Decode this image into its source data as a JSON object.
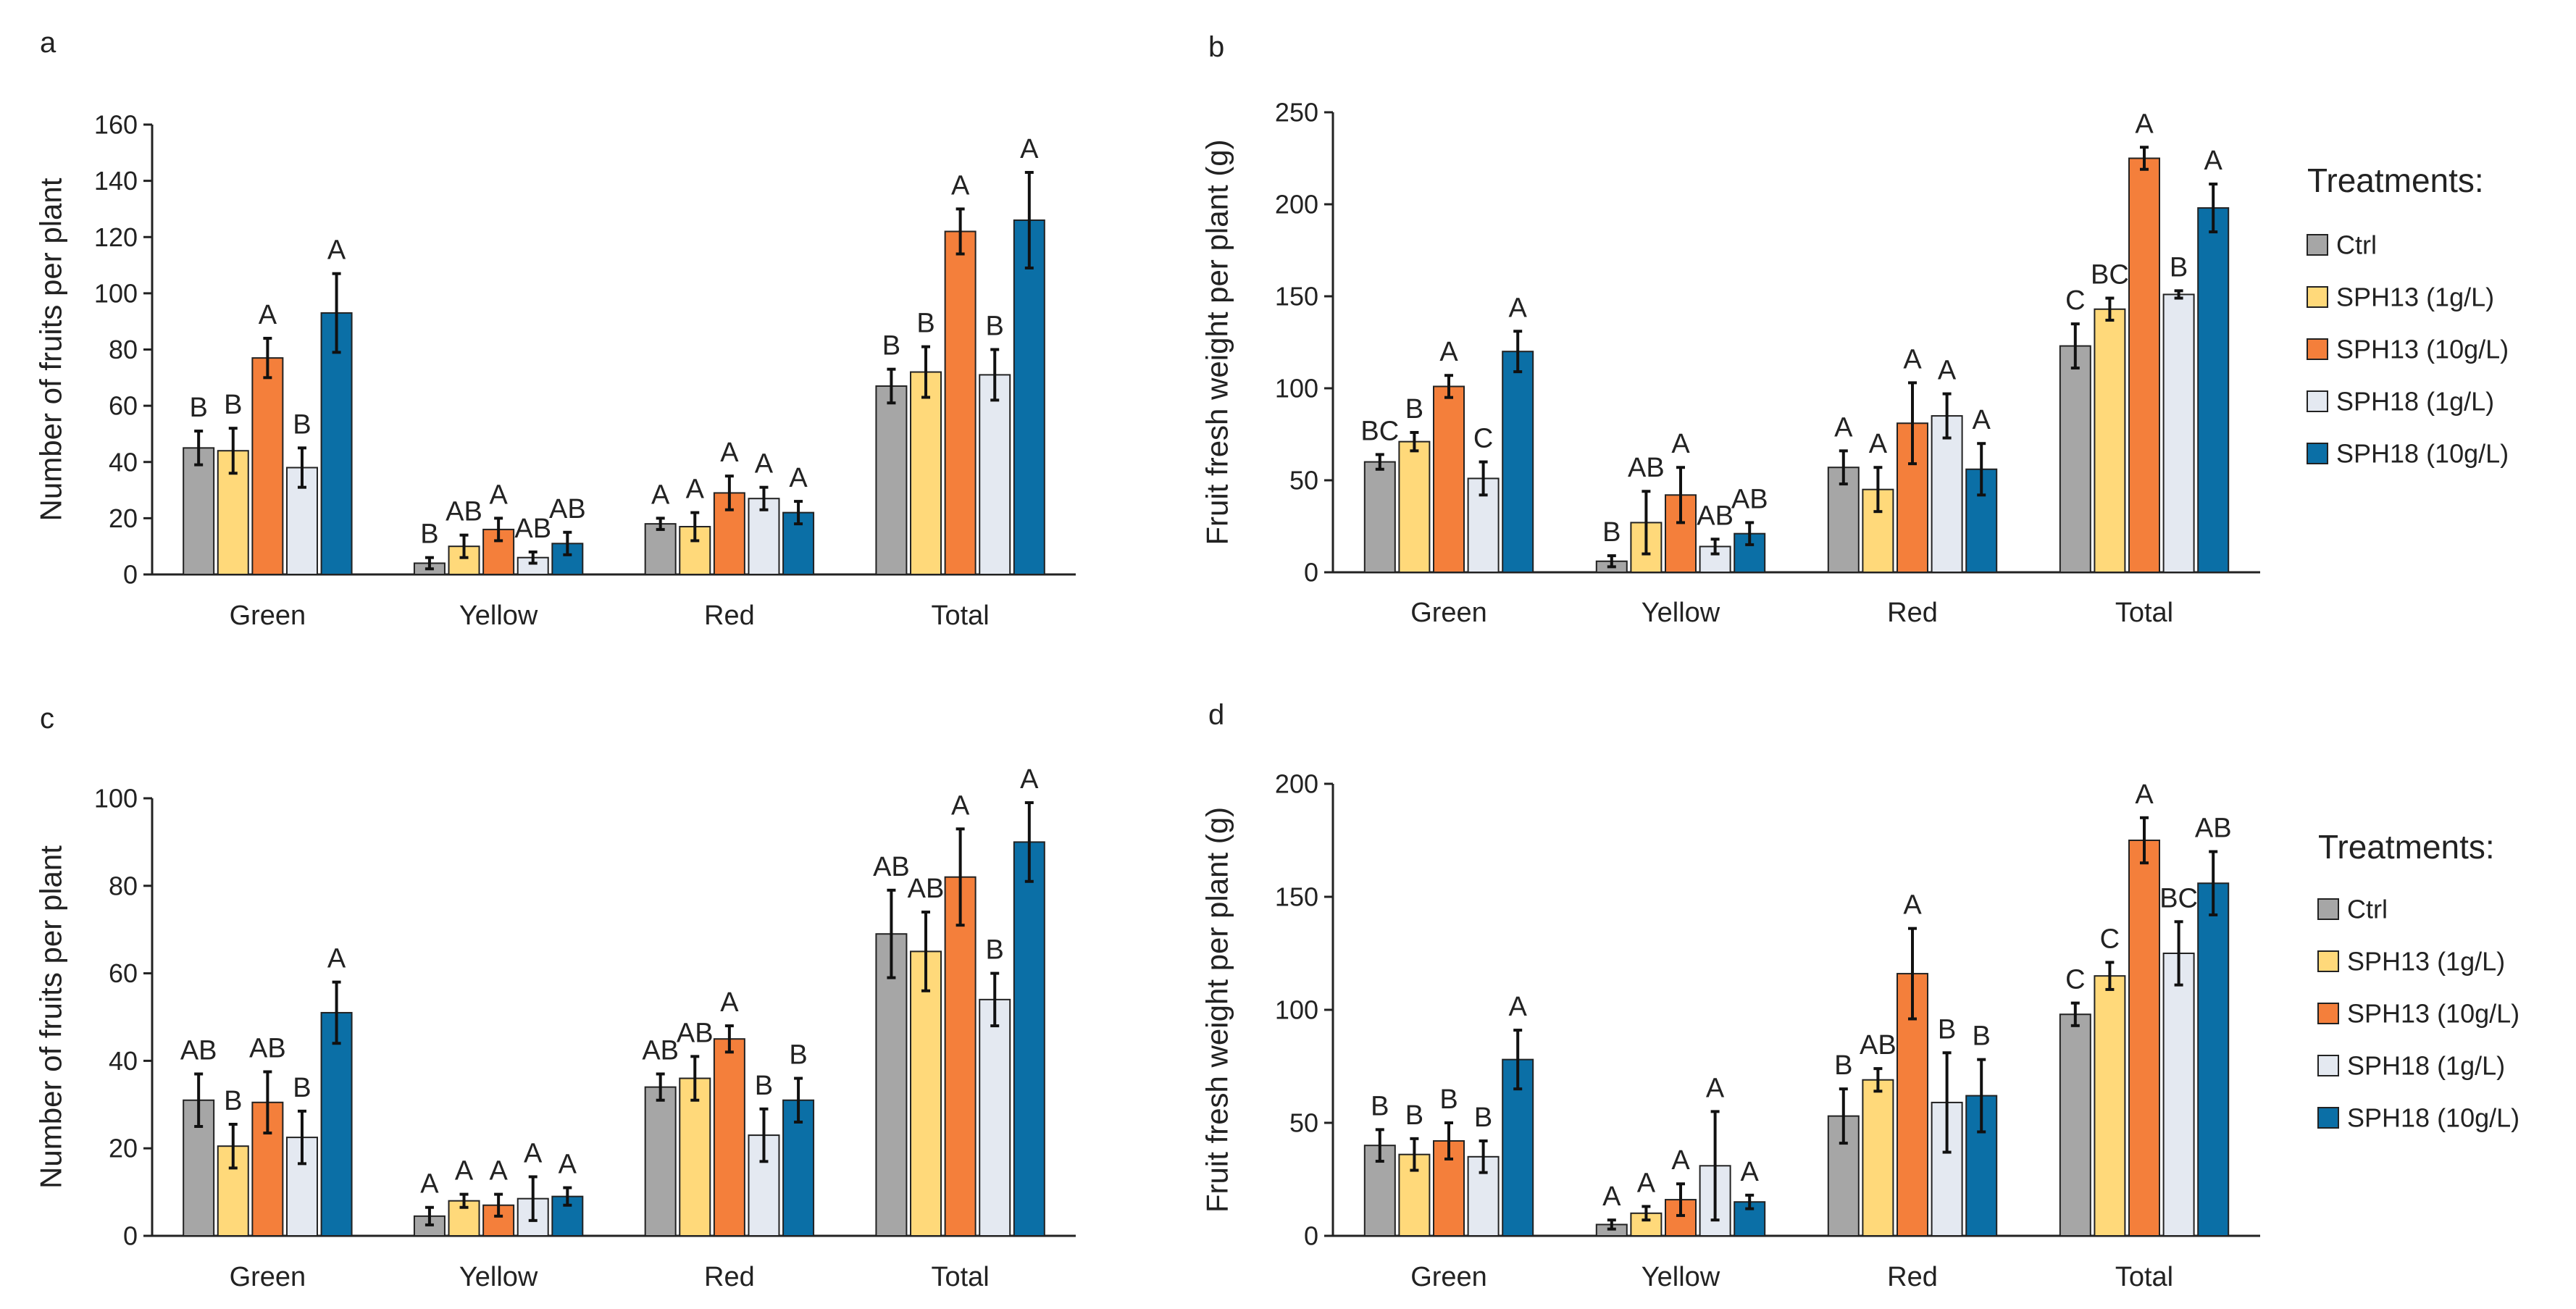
{
  "figure": {
    "legend_title": "Treatments:",
    "treatments": [
      "Ctrl",
      "SPH13 (1g/L)",
      "SPH13 (10g/L)",
      "SPH18 (1g/L)",
      "SPH18 (10g/L)"
    ],
    "colors": [
      "#a6a6a6",
      "#ffd97a",
      "#f47f3b",
      "#e4e9f1",
      "#0b6fa6"
    ]
  },
  "chart_data": [
    {
      "panel": "a",
      "type": "bar",
      "ylabel": "Number of fruits per plant",
      "ylim": [
        0,
        160
      ],
      "yticks": [
        0,
        20,
        40,
        60,
        80,
        100,
        120,
        140,
        160
      ],
      "categories": [
        "Green",
        "Yellow",
        "Red",
        "Total"
      ],
      "series": [
        {
          "name": "Ctrl",
          "values": [
            45,
            4,
            18,
            67
          ],
          "errors": [
            6,
            2,
            2,
            6
          ],
          "letters": [
            "B",
            "B",
            "A",
            "B"
          ]
        },
        {
          "name": "SPH13 (1g/L)",
          "values": [
            44,
            10,
            17,
            72
          ],
          "errors": [
            8,
            4,
            5,
            9
          ],
          "letters": [
            "B",
            "AB",
            "A",
            "B"
          ]
        },
        {
          "name": "SPH13 (10g/L)",
          "values": [
            77,
            16,
            29,
            122
          ],
          "errors": [
            7,
            4,
            6,
            8
          ],
          "letters": [
            "A",
            "A",
            "A",
            "A"
          ]
        },
        {
          "name": "SPH18 (1g/L)",
          "values": [
            38,
            6,
            27,
            71
          ],
          "errors": [
            7,
            2,
            4,
            9
          ],
          "letters": [
            "B",
            "AB",
            "A",
            "B"
          ]
        },
        {
          "name": "SPH18 (10g/L)",
          "values": [
            93,
            11,
            22,
            126
          ],
          "errors": [
            14,
            4,
            4,
            17
          ],
          "letters": [
            "A",
            "AB",
            "A",
            "A"
          ]
        }
      ]
    },
    {
      "panel": "b",
      "type": "bar",
      "ylabel": "Fruit fresh weight per plant  (g)",
      "ylim": [
        0,
        250
      ],
      "yticks": [
        0,
        50,
        100,
        150,
        200,
        250
      ],
      "categories": [
        "Green",
        "Yellow",
        "Red",
        "Total"
      ],
      "series": [
        {
          "name": "Ctrl",
          "values": [
            60,
            6,
            57,
            123
          ],
          "errors": [
            4,
            3,
            9,
            12
          ],
          "letters": [
            "BC",
            "B",
            "A",
            "C"
          ]
        },
        {
          "name": "SPH13 (1g/L)",
          "values": [
            71,
            27,
            45,
            143
          ],
          "errors": [
            5,
            17,
            12,
            6
          ],
          "letters": [
            "B",
            "AB",
            "A",
            "BC"
          ]
        },
        {
          "name": "SPH13 (10g/L)",
          "values": [
            101,
            42,
            81,
            225
          ],
          "errors": [
            6,
            15,
            22,
            6
          ],
          "letters": [
            "A",
            "A",
            "A",
            "A"
          ]
        },
        {
          "name": "SPH18 (1g/L)",
          "values": [
            51,
            14,
            85,
            151
          ],
          "errors": [
            9,
            4,
            12,
            2
          ],
          "letters": [
            "C",
            "AB",
            "A",
            "B"
          ]
        },
        {
          "name": "SPH18 (10g/L)",
          "values": [
            120,
            21,
            56,
            198
          ],
          "errors": [
            11,
            6,
            14,
            13
          ],
          "letters": [
            "A",
            "AB",
            "A",
            "A"
          ]
        }
      ]
    },
    {
      "panel": "c",
      "type": "bar",
      "ylabel": "Number of fruits per plant",
      "ylim": [
        0,
        100
      ],
      "yticks": [
        0,
        20,
        40,
        60,
        80,
        100
      ],
      "categories": [
        "Green",
        "Yellow",
        "Red",
        "Total"
      ],
      "series": [
        {
          "name": "Ctrl",
          "values": [
            31,
            4.5,
            34,
            69
          ],
          "errors": [
            6,
            2,
            3,
            10
          ],
          "letters": [
            "AB",
            "A",
            "AB",
            "AB"
          ]
        },
        {
          "name": "SPH13 (1g/L)",
          "values": [
            20.5,
            8,
            36,
            65
          ],
          "errors": [
            5,
            1.5,
            5,
            9
          ],
          "letters": [
            "B",
            "A",
            "AB",
            "AB"
          ]
        },
        {
          "name": "SPH13 (10g/L)",
          "values": [
            30.5,
            7,
            45,
            82
          ],
          "errors": [
            7,
            2.5,
            3,
            11
          ],
          "letters": [
            "AB",
            "A",
            "A",
            "A"
          ]
        },
        {
          "name": "SPH18 (1g/L)",
          "values": [
            22.5,
            8.5,
            23,
            54
          ],
          "errors": [
            6,
            5,
            6,
            6
          ],
          "letters": [
            "B",
            "A",
            "B",
            "B"
          ]
        },
        {
          "name": "SPH18 (10g/L)",
          "values": [
            51,
            9,
            31,
            90
          ],
          "errors": [
            7,
            2,
            5,
            9
          ],
          "letters": [
            "A",
            "A",
            "B",
            "A"
          ]
        }
      ]
    },
    {
      "panel": "d",
      "type": "bar",
      "ylabel": "Fruit fresh weight per plant (g)",
      "ylim": [
        0,
        200
      ],
      "yticks": [
        0,
        50,
        100,
        150,
        200
      ],
      "categories": [
        "Green",
        "Yellow",
        "Red",
        "Total"
      ],
      "series": [
        {
          "name": "Ctrl",
          "values": [
            40,
            5,
            53,
            98
          ],
          "errors": [
            7,
            2,
            12,
            5
          ],
          "letters": [
            "B",
            "A",
            "B",
            "C"
          ]
        },
        {
          "name": "SPH13 (1g/L)",
          "values": [
            36,
            10,
            69,
            115
          ],
          "errors": [
            7,
            3,
            5,
            6
          ],
          "letters": [
            "B",
            "A",
            "AB",
            "C"
          ]
        },
        {
          "name": "SPH13 (10g/L)",
          "values": [
            42,
            16,
            116,
            175
          ],
          "errors": [
            8,
            7,
            20,
            10
          ],
          "letters": [
            "B",
            "A",
            "A",
            "A"
          ]
        },
        {
          "name": "SPH18 (1g/L)",
          "values": [
            35,
            31,
            59,
            125
          ],
          "errors": [
            7,
            24,
            22,
            14
          ],
          "letters": [
            "B",
            "A",
            "B",
            "BC"
          ]
        },
        {
          "name": "SPH18 (10g/L)",
          "values": [
            78,
            15,
            62,
            156
          ],
          "errors": [
            13,
            3,
            16,
            14
          ],
          "letters": [
            "A",
            "A",
            "B",
            "AB"
          ]
        }
      ]
    }
  ]
}
